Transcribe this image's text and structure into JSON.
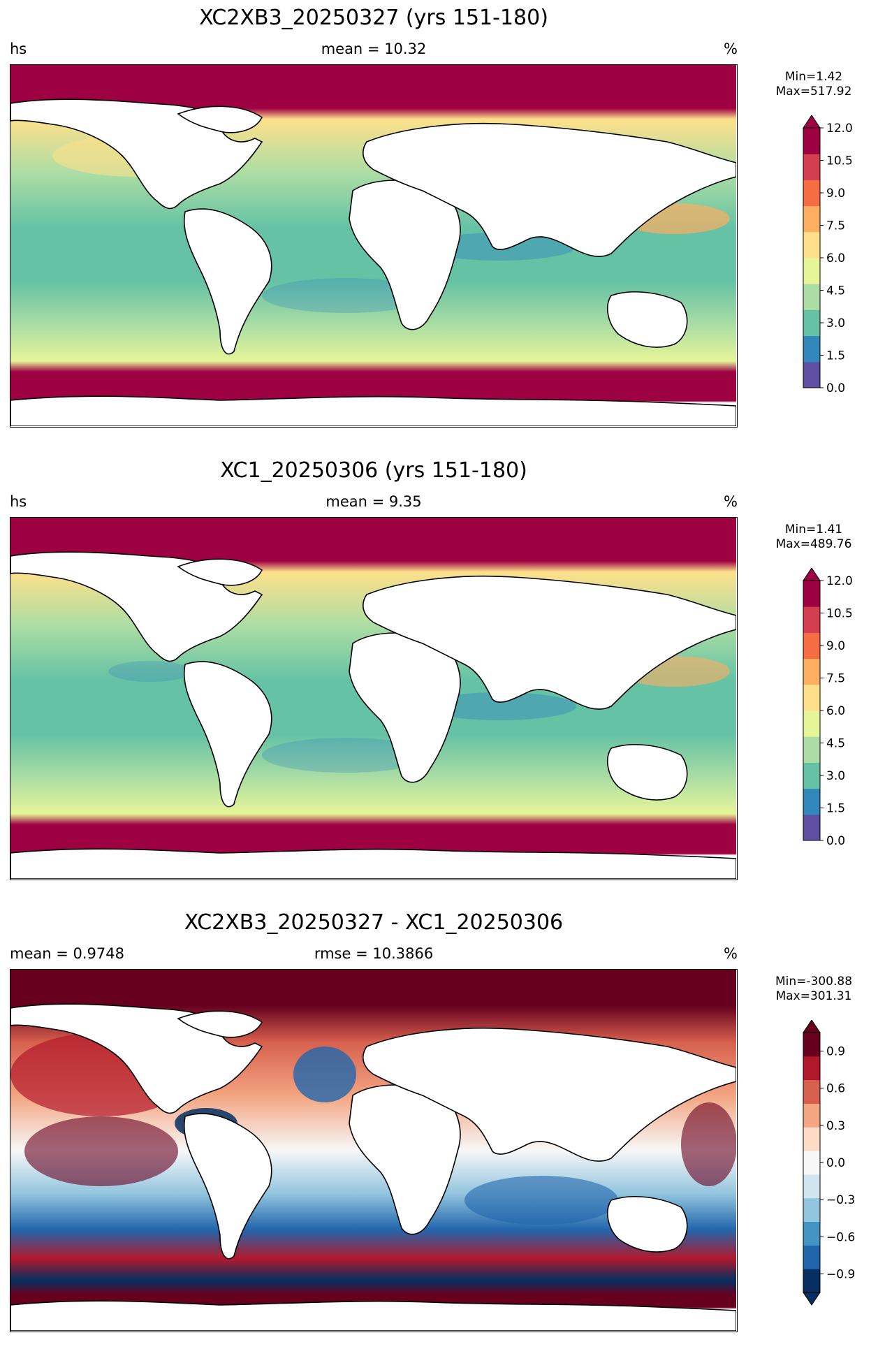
{
  "panels": [
    {
      "title": "XC2XB3_20250327 (yrs 151-180)",
      "left_label": "hs",
      "center_label": "mean = 10.32",
      "right_label": "%",
      "min_text": "Min=1.42",
      "max_text": "Max=517.92",
      "colorbar": {
        "cmap": "Spectral_r",
        "ticks": [
          "0.0",
          "1.5",
          "3.0",
          "4.5",
          "6.0",
          "7.5",
          "9.0",
          "10.5",
          "12.0"
        ],
        "range": [
          0,
          12
        ],
        "extend": "max",
        "colors": [
          "#5e4fa2",
          "#3288bd",
          "#66c2a5",
          "#abdda4",
          "#e6f598",
          "#fee08b",
          "#fdae61",
          "#f46d43",
          "#d53e4f",
          "#9e0142"
        ]
      }
    },
    {
      "title": "XC1_20250306 (yrs 151-180)",
      "left_label": "hs",
      "center_label": "mean = 9.35",
      "right_label": "%",
      "min_text": "Min=1.41",
      "max_text": "Max=489.76",
      "colorbar": {
        "cmap": "Spectral_r",
        "ticks": [
          "0.0",
          "1.5",
          "3.0",
          "4.5",
          "6.0",
          "7.5",
          "9.0",
          "10.5",
          "12.0"
        ],
        "range": [
          0,
          12
        ],
        "extend": "max",
        "colors": [
          "#5e4fa2",
          "#3288bd",
          "#66c2a5",
          "#abdda4",
          "#e6f598",
          "#fee08b",
          "#fdae61",
          "#f46d43",
          "#d53e4f",
          "#9e0142"
        ]
      }
    },
    {
      "title": "XC2XB3_20250327 - XC1_20250306",
      "left_label": "mean = 0.9748",
      "center_label": "rmse = 10.3866",
      "right_label": "%",
      "min_text": "Min=-300.88",
      "max_text": "Max=301.31",
      "colorbar": {
        "cmap": "RdBu_r",
        "ticks": [
          "−0.9",
          "−0.6",
          "−0.3",
          "0.0",
          "0.3",
          "0.6",
          "0.9"
        ],
        "range": [
          -1.05,
          1.05
        ],
        "extend": "both",
        "colors": [
          "#053061",
          "#2166ac",
          "#4393c3",
          "#92c5de",
          "#d1e5f0",
          "#f7f7f7",
          "#fddbc7",
          "#f4a582",
          "#d6604d",
          "#b2182b",
          "#67001f"
        ]
      }
    }
  ]
}
